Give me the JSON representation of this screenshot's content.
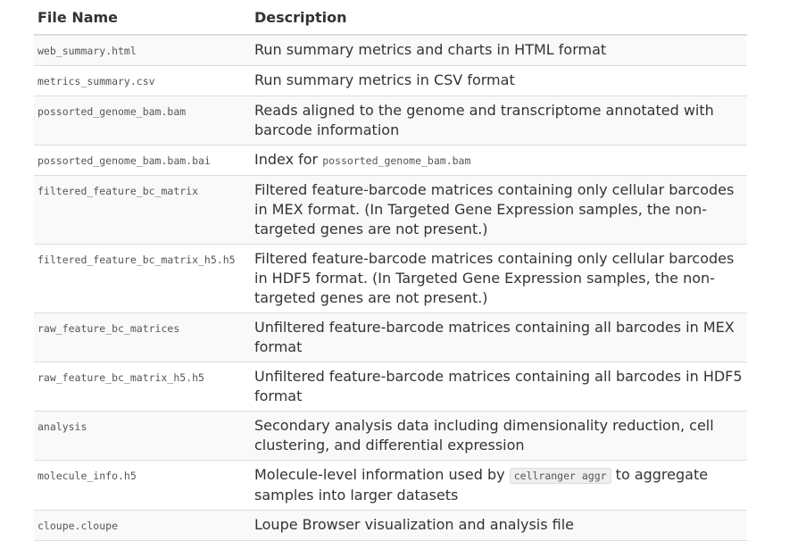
{
  "table": {
    "headers": {
      "file_name": "File Name",
      "description": "Description"
    },
    "rows": [
      {
        "file": "web_summary.html",
        "desc": "Run summary metrics and charts in HTML format"
      },
      {
        "file": "metrics_summary.csv",
        "desc": "Run summary metrics in CSV format"
      },
      {
        "file": "possorted_genome_bam.bam",
        "desc": "Reads aligned to the genome and transcriptome annotated with barcode information"
      },
      {
        "file": "possorted_genome_bam.bam.bai",
        "desc_prefix": "Index for ",
        "desc_code": "possorted_genome_bam.bam"
      },
      {
        "file": "filtered_feature_bc_matrix",
        "desc": "Filtered feature-barcode matrices containing only cellular barcodes in MEX format. (In Targeted Gene Expression samples, the non-targeted genes are not present.)"
      },
      {
        "file": "filtered_feature_bc_matrix_h5.h5",
        "desc": "Filtered feature-barcode matrices containing only cellular barcodes in HDF5 format. (In Targeted Gene Expression samples, the non-targeted genes are not present.)"
      },
      {
        "file": "raw_feature_bc_matrices",
        "desc": "Unfiltered feature-barcode matrices containing all barcodes in MEX format"
      },
      {
        "file": "raw_feature_bc_matrix_h5.h5",
        "desc": "Unfiltered feature-barcode matrices containing all barcodes in HDF5 format"
      },
      {
        "file": "analysis",
        "desc": "Secondary analysis data including dimensionality reduction, cell clustering, and differential expression"
      },
      {
        "file": "molecule_info.h5",
        "desc_prefix": "Molecule-level information used by ",
        "desc_code": "cellranger aggr",
        "desc_suffix": " to aggregate samples into larger datasets"
      },
      {
        "file": "cloupe.cloupe",
        "desc": "Loupe Browser visualization and analysis file"
      }
    ]
  }
}
